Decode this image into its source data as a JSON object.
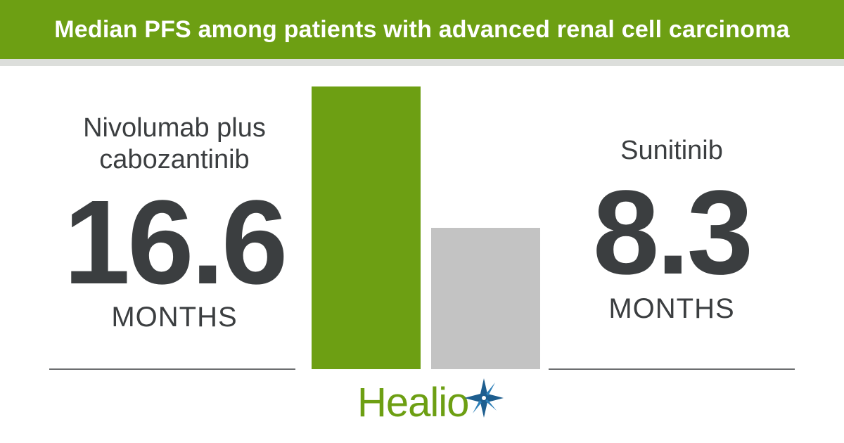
{
  "colors": {
    "brand_green": "#6d9f13",
    "bar_gray": "#c3c3c3",
    "text_dark": "#3b3e40",
    "logo_blue": "#1e5e8f"
  },
  "chart_data": {
    "type": "bar",
    "title": "Median PFS among patients with advanced renal cell carcinoma",
    "categories": [
      "Nivolumab plus cabozantinib",
      "Sunitinib"
    ],
    "values": [
      16.6,
      8.3
    ],
    "value_labels": [
      "16.6",
      "8.3"
    ],
    "unit": "MONTHS",
    "ylim": [
      0,
      16.6
    ],
    "colors": [
      "#6d9f13",
      "#c3c3c3"
    ],
    "grid": false,
    "legend": "none"
  },
  "labels": {
    "left_series": "Nivolumab plus\ncabozantinib",
    "left_value": "16.6",
    "left_unit": "MONTHS",
    "right_series": "Sunitinib",
    "right_value": "8.3",
    "right_unit": "MONTHS"
  },
  "logo": {
    "text": "Healio",
    "icon": "star-burst-icon"
  }
}
